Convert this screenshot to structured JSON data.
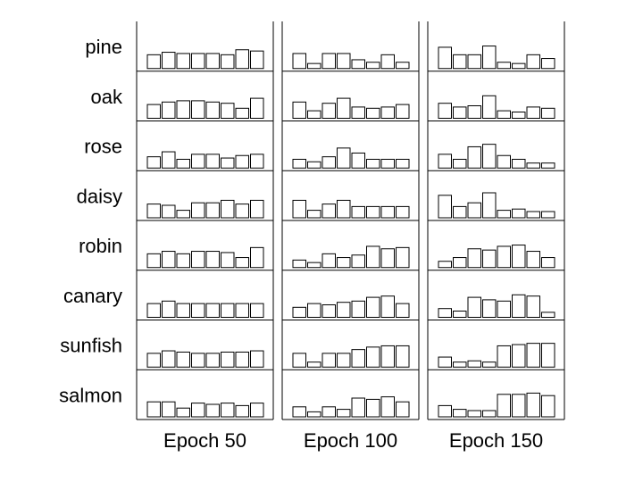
{
  "chart_data": {
    "type": "bar",
    "layout": "small-multiples",
    "title": "",
    "xlabel": "",
    "ylabel": "",
    "ylim": [
      0,
      1
    ],
    "rows": [
      "pine",
      "oak",
      "rose",
      "daisy",
      "robin",
      "canary",
      "sunfish",
      "salmon"
    ],
    "columns": [
      "Epoch 50",
      "Epoch 100",
      "Epoch 150"
    ],
    "units_per_panel": 8,
    "values": {
      "Epoch 50": [
        [
          0.55,
          0.65,
          0.6,
          0.6,
          0.6,
          0.55,
          0.75,
          0.7
        ],
        [
          0.55,
          0.65,
          0.7,
          0.7,
          0.65,
          0.6,
          0.4,
          0.8
        ],
        [
          0.45,
          0.65,
          0.35,
          0.55,
          0.55,
          0.4,
          0.5,
          0.55
        ],
        [
          0.55,
          0.5,
          0.3,
          0.6,
          0.6,
          0.7,
          0.55,
          0.7
        ],
        [
          0.55,
          0.65,
          0.55,
          0.65,
          0.65,
          0.6,
          0.4,
          0.8
        ],
        [
          0.55,
          0.65,
          0.55,
          0.55,
          0.55,
          0.55,
          0.55,
          0.55
        ],
        [
          0.55,
          0.65,
          0.6,
          0.55,
          0.55,
          0.6,
          0.6,
          0.65
        ],
        [
          0.6,
          0.6,
          0.35,
          0.55,
          0.5,
          0.55,
          0.45,
          0.55
        ]
      ],
      "Epoch 100": [
        [
          0.6,
          0.2,
          0.6,
          0.6,
          0.35,
          0.25,
          0.55,
          0.25
        ],
        [
          0.65,
          0.3,
          0.6,
          0.8,
          0.45,
          0.4,
          0.45,
          0.55
        ],
        [
          0.35,
          0.25,
          0.45,
          0.8,
          0.6,
          0.35,
          0.35,
          0.35
        ],
        [
          0.7,
          0.3,
          0.55,
          0.7,
          0.45,
          0.45,
          0.45,
          0.45
        ],
        [
          0.3,
          0.2,
          0.55,
          0.4,
          0.5,
          0.85,
          0.75,
          0.8
        ],
        [
          0.4,
          0.55,
          0.5,
          0.6,
          0.65,
          0.8,
          0.85,
          0.55
        ],
        [
          0.55,
          0.2,
          0.55,
          0.55,
          0.7,
          0.8,
          0.85,
          0.85
        ],
        [
          0.4,
          0.2,
          0.4,
          0.3,
          0.75,
          0.7,
          0.8,
          0.6
        ]
      ],
      "Epoch 150": [
        [
          0.85,
          0.55,
          0.55,
          0.9,
          0.25,
          0.2,
          0.55,
          0.4
        ],
        [
          0.6,
          0.45,
          0.5,
          0.9,
          0.3,
          0.25,
          0.45,
          0.4
        ],
        [
          0.55,
          0.35,
          0.85,
          0.95,
          0.5,
          0.35,
          0.2,
          0.2
        ],
        [
          0.9,
          0.45,
          0.6,
          1.0,
          0.3,
          0.35,
          0.25,
          0.25
        ],
        [
          0.25,
          0.4,
          0.75,
          0.7,
          0.85,
          0.9,
          0.65,
          0.4
        ],
        [
          0.35,
          0.25,
          0.8,
          0.7,
          0.65,
          0.9,
          0.85,
          0.2
        ],
        [
          0.4,
          0.2,
          0.25,
          0.2,
          0.85,
          0.9,
          0.95,
          0.95
        ],
        [
          0.45,
          0.3,
          0.25,
          0.25,
          0.9,
          0.9,
          0.95,
          0.85
        ]
      ]
    },
    "grid": false,
    "legend": "none"
  }
}
